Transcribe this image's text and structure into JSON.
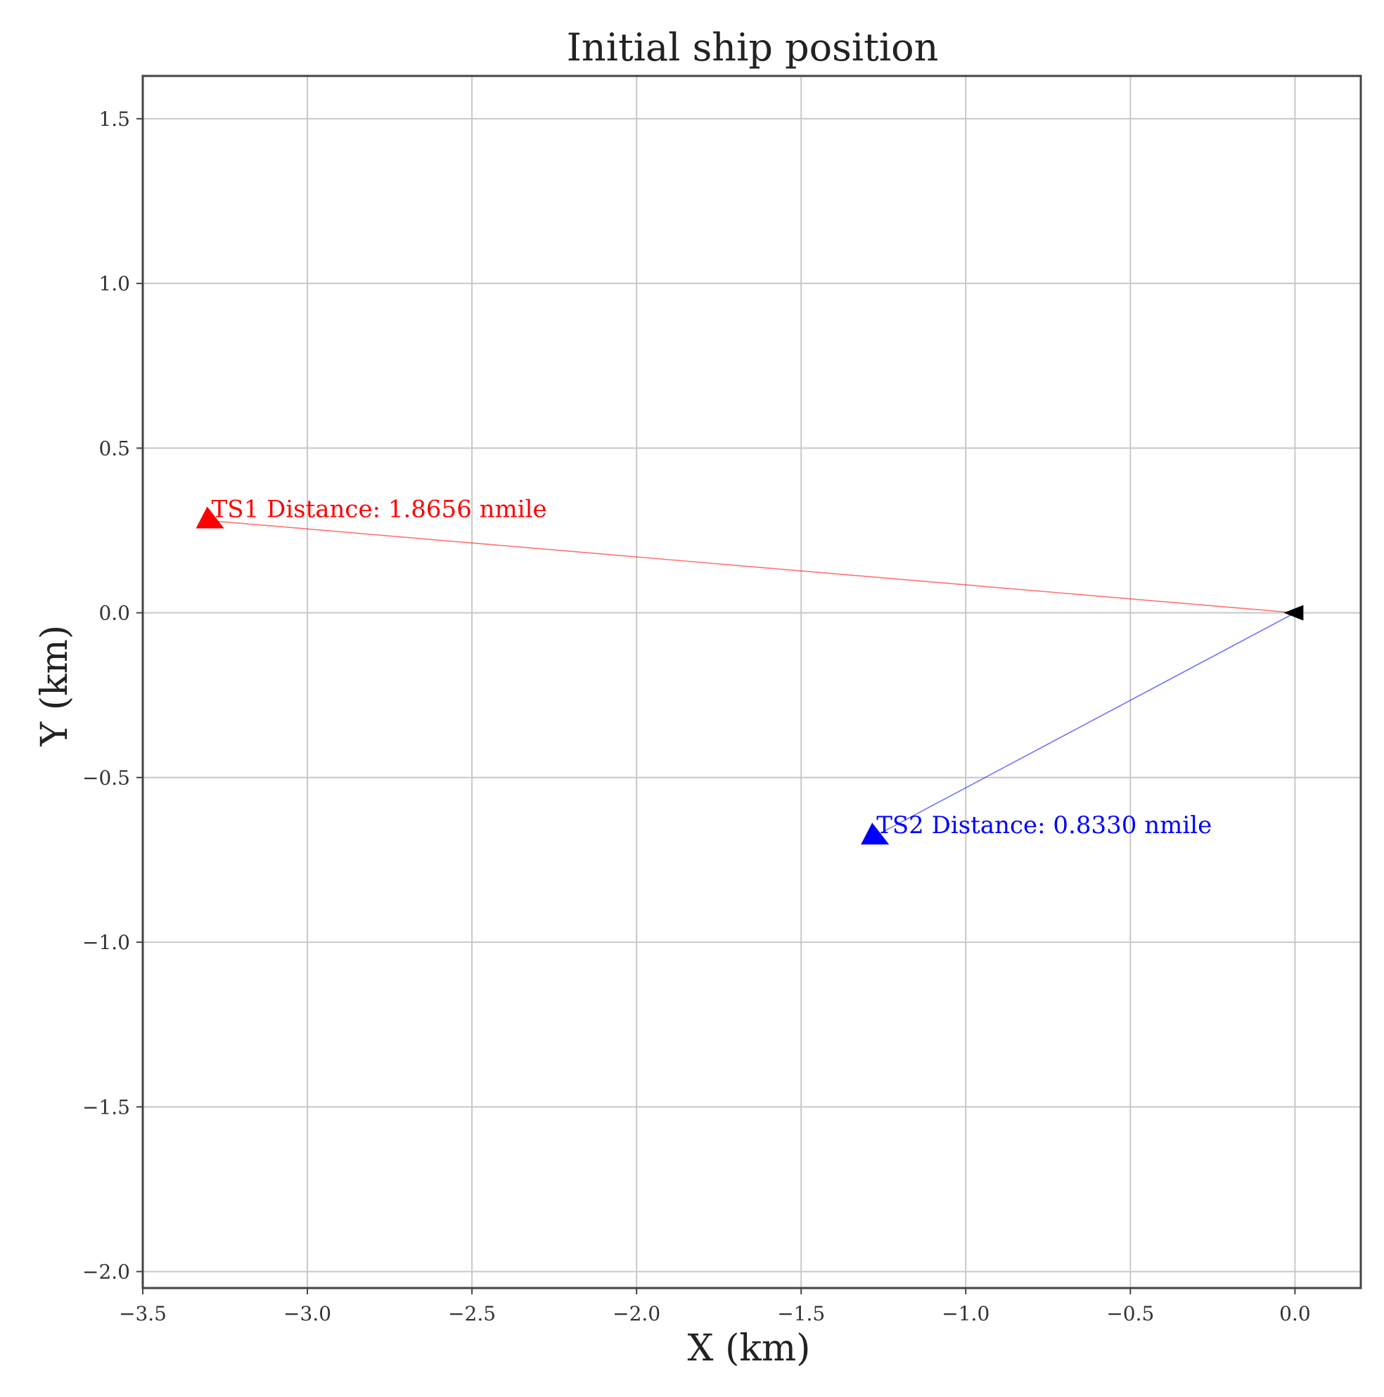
{
  "chart_data": {
    "type": "scatter",
    "title": "Initial ship position",
    "xlabel": "X (km)",
    "ylabel": "Y (km)",
    "xlim": [
      -3.5,
      0.2
    ],
    "ylim": [
      -2.05,
      1.63
    ],
    "xticks": [
      -3.5,
      -3.0,
      -2.5,
      -2.0,
      -1.5,
      -1.0,
      -0.5,
      0.0
    ],
    "yticks": [
      -2.0,
      -1.5,
      -1.0,
      -0.5,
      0.0,
      0.5,
      1.0,
      1.5
    ],
    "xtick_labels": [
      "−3.5",
      "−3.0",
      "−2.5",
      "−2.0",
      "−1.5",
      "−1.0",
      "−0.5",
      "0.0"
    ],
    "ytick_labels": [
      "−2.0",
      "−1.5",
      "−1.0",
      "−0.5",
      "0.0",
      "0.5",
      "1.0",
      "1.5"
    ],
    "grid": true,
    "own_ship": {
      "x": 0.0,
      "y": 0.0,
      "color": "#000000"
    },
    "targets": [
      {
        "x": -3.3,
        "y": 0.28,
        "color": "#ff0000",
        "label": "TS1 Distance: 1.8656 nmile"
      },
      {
        "x": -1.28,
        "y": -0.68,
        "color": "#0000ff",
        "label": "TS2 Distance: 0.8330 nmile"
      }
    ]
  }
}
